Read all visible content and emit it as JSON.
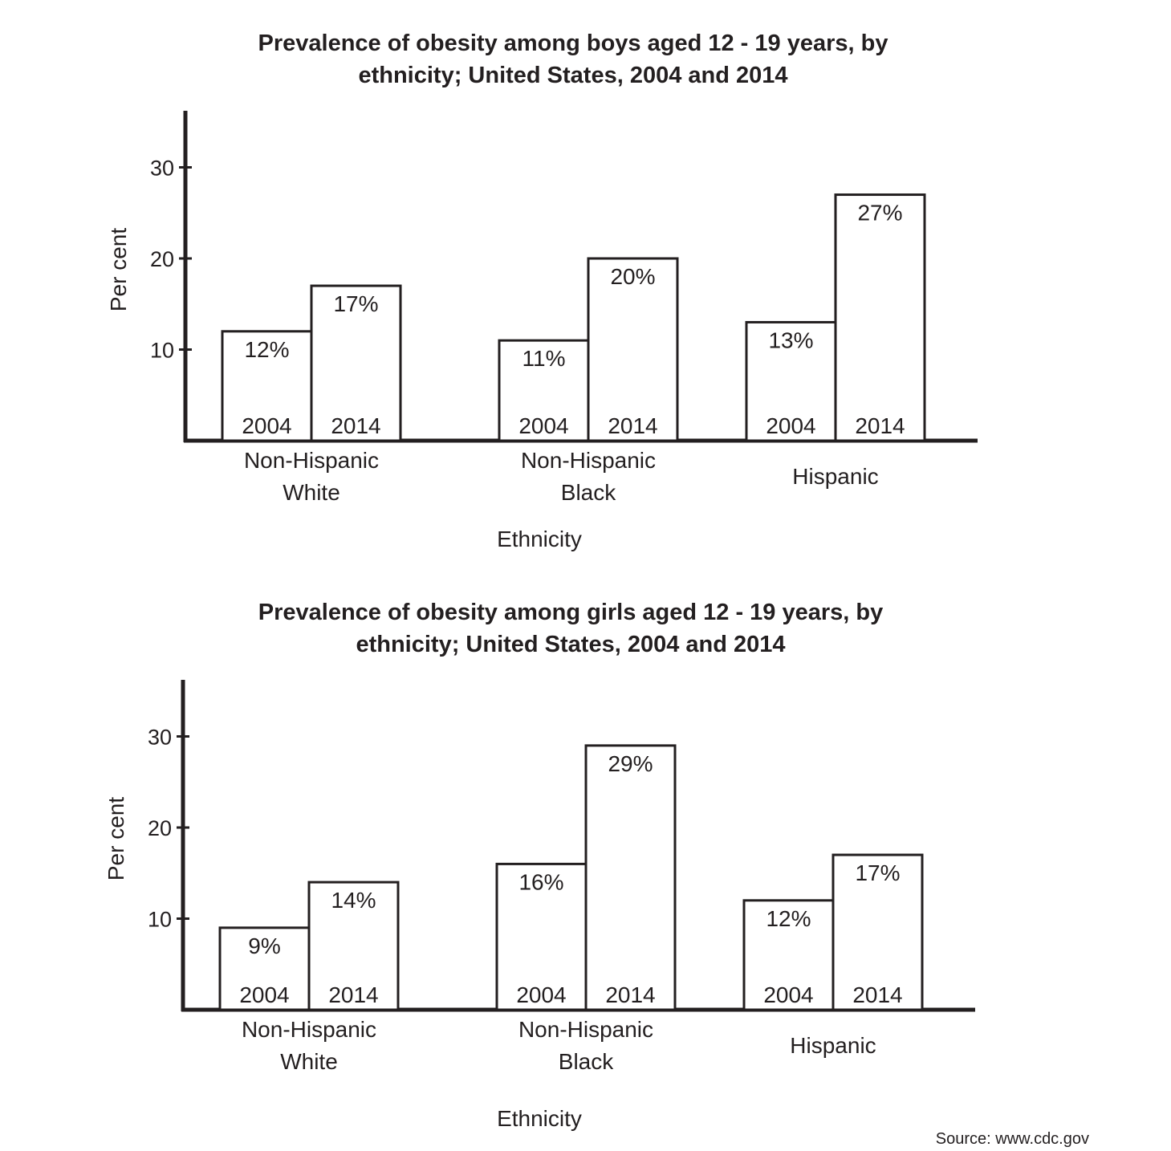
{
  "chart_data": [
    {
      "type": "bar",
      "title_lines": [
        "Prevalence of obesity among boys aged 12 - 19 years, by",
        "ethnicity; United States, 2004 and 2014"
      ],
      "ylabel": "Per cent",
      "xlabel": "Ethnicity",
      "yticks": [
        "10",
        "20",
        "30"
      ],
      "ylim": [
        0,
        36
      ],
      "series": [
        {
          "values": [
            12,
            11,
            13
          ]
        },
        {
          "values": [
            17,
            20,
            27
          ]
        }
      ],
      "bar_tags": [
        "2004",
        "2014"
      ],
      "categories": [
        {
          "lines": [
            "Non-Hispanic",
            "White"
          ],
          "bars": [
            {
              "year": "2004",
              "value": 12,
              "label": "12%"
            },
            {
              "year": "2014",
              "value": 17,
              "label": "17%"
            }
          ]
        },
        {
          "lines": [
            "Non-Hispanic",
            "Black"
          ],
          "bars": [
            {
              "year": "2004",
              "value": 11,
              "label": "11%"
            },
            {
              "year": "2014",
              "value": 20,
              "label": "20%"
            }
          ]
        },
        {
          "lines": [
            "Hispanic"
          ],
          "bars": [
            {
              "year": "2004",
              "value": 13,
              "label": "13%"
            },
            {
              "year": "2014",
              "value": 27,
              "label": "27%"
            }
          ]
        }
      ],
      "grid": false
    },
    {
      "type": "bar",
      "title_lines": [
        "Prevalence of obesity among girls aged 12 - 19 years, by",
        "ethnicity; United States, 2004 and 2014"
      ],
      "ylabel": "Per cent",
      "xlabel": "Ethnicity",
      "yticks": [
        "10",
        "20",
        "30"
      ],
      "ylim": [
        0,
        36
      ],
      "series": [
        {
          "values": [
            9,
            16,
            12
          ]
        },
        {
          "values": [
            14,
            29,
            17
          ]
        }
      ],
      "bar_tags": [
        "2004",
        "2014"
      ],
      "categories": [
        {
          "lines": [
            "Non-Hispanic",
            "White"
          ],
          "bars": [
            {
              "year": "2004",
              "value": 9,
              "label": "9%"
            },
            {
              "year": "2014",
              "value": 14,
              "label": "14%"
            }
          ]
        },
        {
          "lines": [
            "Non-Hispanic",
            "Black"
          ],
          "bars": [
            {
              "year": "2004",
              "value": 16,
              "label": "16%"
            },
            {
              "year": "2014",
              "value": 29,
              "label": "29%"
            }
          ]
        },
        {
          "lines": [
            "Hispanic"
          ],
          "bars": [
            {
              "year": "2004",
              "value": 12,
              "label": "12%"
            },
            {
              "year": "2014",
              "value": 17,
              "label": "17%"
            }
          ]
        }
      ],
      "grid": false
    }
  ],
  "source": "Source: www.cdc.gov"
}
